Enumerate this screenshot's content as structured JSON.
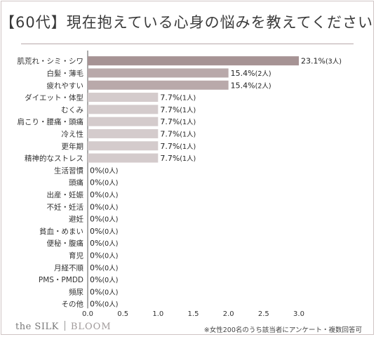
{
  "title": "【60代】現在抱えている心身の悩みを教えてください",
  "brand": {
    "name1": "the SILK",
    "name2": "BLOOM"
  },
  "footnote": "※女性200名のうち該当者にアンケート・複数回答可",
  "colors": {
    "top": "#a69394",
    "high": "#b9a9aa",
    "mid": "#d4cbcc"
  },
  "chart_data": {
    "type": "bar",
    "orientation": "horizontal",
    "categories": [
      "肌荒れ・シミ・シワ",
      "白髪・薄毛",
      "疲れやすい",
      "ダイエット・体型",
      "むくみ",
      "肩こり・腰痛・頭痛",
      "冷え性",
      "更年期",
      "精神的なストレス",
      "生活習慣",
      "頭痛",
      "出産・妊娠",
      "不妊・妊活",
      "避妊",
      "貧血・めまい",
      "便秘・腹痛",
      "育児",
      "月経不順",
      "PMS・PMDD",
      "頻尿",
      "その他"
    ],
    "values": [
      3,
      2,
      2,
      1,
      1,
      1,
      1,
      1,
      1,
      0,
      0,
      0,
      0,
      0,
      0,
      0,
      0,
      0,
      0,
      0,
      0
    ],
    "labels": [
      "23.1%",
      "15.4%",
      "15.4%",
      "7.7%",
      "7.7%",
      "7.7%",
      "7.7%",
      "7.7%",
      "7.7%",
      "0%",
      "0%",
      "0%",
      "0%",
      "0%",
      "0%",
      "0%",
      "0%",
      "0%",
      "0%",
      "0%",
      "0%"
    ],
    "counts": [
      "(3人)",
      "(2人)",
      "(2人)",
      "(1人)",
      "(1人)",
      "(1人)",
      "(1人)",
      "(1人)",
      "(1人)",
      "(0人)",
      "(0人)",
      "(0人)",
      "(0人)",
      "(0人)",
      "(0人)",
      "(0人)",
      "(0人)",
      "(0人)",
      "(0人)",
      "(0人)",
      "(0人)"
    ],
    "xlim": [
      0,
      3.0
    ],
    "xticks": [
      "0.0",
      "0.5",
      "1.0",
      "1.5",
      "2.0",
      "2.5",
      "3.0"
    ],
    "grid": false
  }
}
